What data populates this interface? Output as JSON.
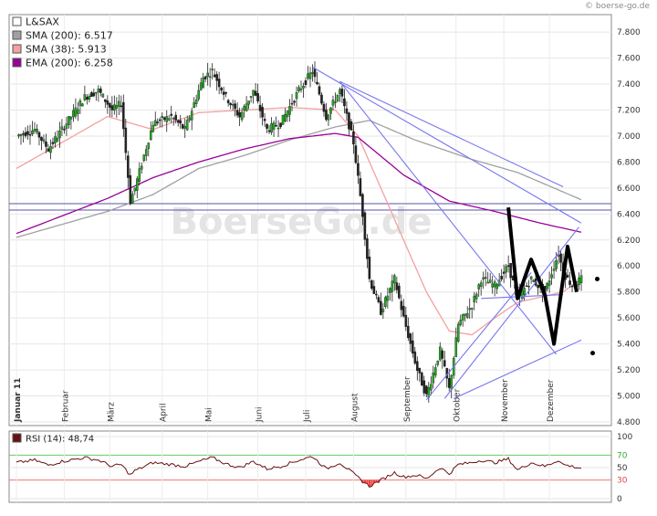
{
  "site_credit": "© boerse-go.de",
  "watermark": "BoerseGo.de",
  "chart_data": [
    {
      "type": "line",
      "name_text": "L&SAX",
      "ylim": [
        4.8,
        7.85
      ],
      "y_ticks": [
        "7.800",
        "7.600",
        "7.400",
        "7.200",
        "7.000",
        "6.800",
        "6.600",
        "6.400",
        "6.200",
        "6.000",
        "5.800",
        "5.600",
        "5.400",
        "5.200",
        "5.000",
        "4.800"
      ],
      "y_tick_values": [
        7.8,
        7.6,
        7.4,
        7.2,
        7.0,
        6.8,
        6.6,
        6.4,
        6.2,
        6.0,
        5.8,
        5.6,
        5.4,
        5.2,
        5.0,
        4.8
      ],
      "x_labels": [
        "Januar 11",
        "Februar",
        "März",
        "April",
        "Mai",
        "Juni",
        "Juli",
        "August",
        "September",
        "Oktober",
        "November",
        "Dezember"
      ],
      "x_label_index": [
        0,
        21,
        41,
        64,
        84,
        106,
        127,
        148,
        171,
        193,
        214,
        234
      ],
      "n_days": 255,
      "grid": true,
      "legend": "top-left",
      "legend_entries": [
        {
          "label": "L&SAX",
          "color": "#ffffff"
        },
        {
          "label": "SMA (200): 6.517",
          "color": "#a0a0a0"
        },
        {
          "label": "SMA (38): 5.913",
          "color": "#f4a0a0"
        },
        {
          "label": "EMA (200): 6.258",
          "color": "#990099"
        }
      ],
      "price_keyframes": [
        [
          0,
          7.0
        ],
        [
          8,
          7.05
        ],
        [
          14,
          6.9
        ],
        [
          20,
          7.05
        ],
        [
          30,
          7.3
        ],
        [
          36,
          7.35
        ],
        [
          42,
          7.2
        ],
        [
          46,
          7.25
        ],
        [
          50,
          6.5
        ],
        [
          52,
          6.6
        ],
        [
          60,
          7.1
        ],
        [
          68,
          7.15
        ],
        [
          74,
          7.05
        ],
        [
          82,
          7.45
        ],
        [
          86,
          7.5
        ],
        [
          92,
          7.3
        ],
        [
          98,
          7.15
        ],
        [
          104,
          7.35
        ],
        [
          110,
          7.05
        ],
        [
          116,
          7.1
        ],
        [
          124,
          7.35
        ],
        [
          130,
          7.5
        ],
        [
          136,
          7.15
        ],
        [
          142,
          7.35
        ],
        [
          148,
          6.95
        ],
        [
          152,
          6.4
        ],
        [
          155,
          5.9
        ],
        [
          160,
          5.65
        ],
        [
          166,
          5.9
        ],
        [
          170,
          5.6
        ],
        [
          176,
          5.2
        ],
        [
          180,
          5.0
        ],
        [
          186,
          5.35
        ],
        [
          190,
          5.05
        ],
        [
          194,
          5.55
        ],
        [
          200,
          5.7
        ],
        [
          204,
          5.9
        ],
        [
          210,
          5.85
        ],
        [
          216,
          6.0
        ],
        [
          220,
          5.75
        ],
        [
          226,
          5.9
        ],
        [
          232,
          5.8
        ],
        [
          238,
          6.1
        ],
        [
          240,
          5.95
        ],
        [
          244,
          5.85
        ],
        [
          248,
          5.9
        ]
      ],
      "sma200_keyframes": [
        [
          0,
          6.22
        ],
        [
          40,
          6.42
        ],
        [
          60,
          6.55
        ],
        [
          80,
          6.75
        ],
        [
          100,
          6.85
        ],
        [
          120,
          6.97
        ],
        [
          140,
          7.07
        ],
        [
          155,
          7.12
        ],
        [
          175,
          6.97
        ],
        [
          200,
          6.82
        ],
        [
          220,
          6.72
        ],
        [
          240,
          6.57
        ],
        [
          248,
          6.51
        ]
      ],
      "sma38_keyframes": [
        [
          0,
          6.75
        ],
        [
          20,
          6.95
        ],
        [
          40,
          7.15
        ],
        [
          60,
          7.05
        ],
        [
          80,
          7.18
        ],
        [
          100,
          7.2
        ],
        [
          120,
          7.22
        ],
        [
          140,
          7.2
        ],
        [
          150,
          7.0
        ],
        [
          160,
          6.6
        ],
        [
          170,
          6.2
        ],
        [
          180,
          5.8
        ],
        [
          190,
          5.5
        ],
        [
          200,
          5.47
        ],
        [
          210,
          5.6
        ],
        [
          220,
          5.72
        ],
        [
          240,
          5.8
        ],
        [
          248,
          5.9
        ]
      ],
      "ema200_keyframes": [
        [
          0,
          6.25
        ],
        [
          40,
          6.52
        ],
        [
          60,
          6.68
        ],
        [
          80,
          6.8
        ],
        [
          100,
          6.9
        ],
        [
          120,
          6.98
        ],
        [
          140,
          7.02
        ],
        [
          150,
          6.99
        ],
        [
          170,
          6.7
        ],
        [
          190,
          6.5
        ],
        [
          210,
          6.42
        ],
        [
          230,
          6.33
        ],
        [
          248,
          6.26
        ]
      ],
      "hlines": [
        6.48,
        6.43
      ],
      "trend_lines": [
        [
          [
            130,
            7.53
          ],
          [
            248,
            6.33
          ]
        ],
        [
          [
            142,
            7.42
          ],
          [
            240,
            6.61
          ]
        ],
        [
          [
            142,
            7.42
          ],
          [
            237,
            5.32
          ]
        ],
        [
          [
            180,
            4.97
          ],
          [
            226,
            5.95
          ]
        ],
        [
          [
            188,
            4.98
          ],
          [
            247,
            6.3
          ]
        ],
        [
          [
            192,
            4.98
          ],
          [
            248,
            5.43
          ]
        ],
        [
          [
            204,
            5.75
          ],
          [
            240,
            5.78
          ]
        ]
      ],
      "zigzag": [
        [
          216,
          6.45
        ],
        [
          220,
          5.75
        ],
        [
          226,
          6.05
        ],
        [
          232,
          5.78
        ],
        [
          236,
          5.4
        ],
        [
          242,
          6.15
        ],
        [
          246,
          5.8
        ]
      ],
      "markers": [
        [
          255,
          5.9
        ],
        [
          253,
          5.33
        ]
      ]
    },
    {
      "type": "line",
      "name_text": "RSI (14): 48,74",
      "ylim": [
        0,
        100
      ],
      "y_ticks": [
        "100",
        "70",
        "50",
        "30",
        "0"
      ],
      "y_tick_values": [
        100,
        70,
        50,
        30,
        0
      ],
      "ref_levels": [
        70,
        30
      ],
      "rsi_keyframes": [
        [
          0,
          58
        ],
        [
          8,
          62
        ],
        [
          14,
          54
        ],
        [
          20,
          60
        ],
        [
          30,
          66
        ],
        [
          36,
          62
        ],
        [
          42,
          52
        ],
        [
          46,
          55
        ],
        [
          50,
          38
        ],
        [
          52,
          45
        ],
        [
          60,
          58
        ],
        [
          68,
          55
        ],
        [
          74,
          52
        ],
        [
          82,
          62
        ],
        [
          86,
          66
        ],
        [
          92,
          56
        ],
        [
          98,
          50
        ],
        [
          104,
          60
        ],
        [
          110,
          48
        ],
        [
          116,
          52
        ],
        [
          124,
          62
        ],
        [
          130,
          68
        ],
        [
          136,
          48
        ],
        [
          142,
          58
        ],
        [
          148,
          40
        ],
        [
          152,
          28
        ],
        [
          155,
          20
        ],
        [
          160,
          30
        ],
        [
          166,
          42
        ],
        [
          170,
          35
        ],
        [
          176,
          38
        ],
        [
          180,
          32
        ],
        [
          186,
          50
        ],
        [
          190,
          40
        ],
        [
          194,
          55
        ],
        [
          200,
          58
        ],
        [
          204,
          62
        ],
        [
          210,
          58
        ],
        [
          216,
          64
        ],
        [
          220,
          46
        ],
        [
          226,
          58
        ],
        [
          232,
          52
        ],
        [
          238,
          62
        ],
        [
          240,
          55
        ],
        [
          244,
          52
        ],
        [
          248,
          49
        ]
      ]
    }
  ]
}
